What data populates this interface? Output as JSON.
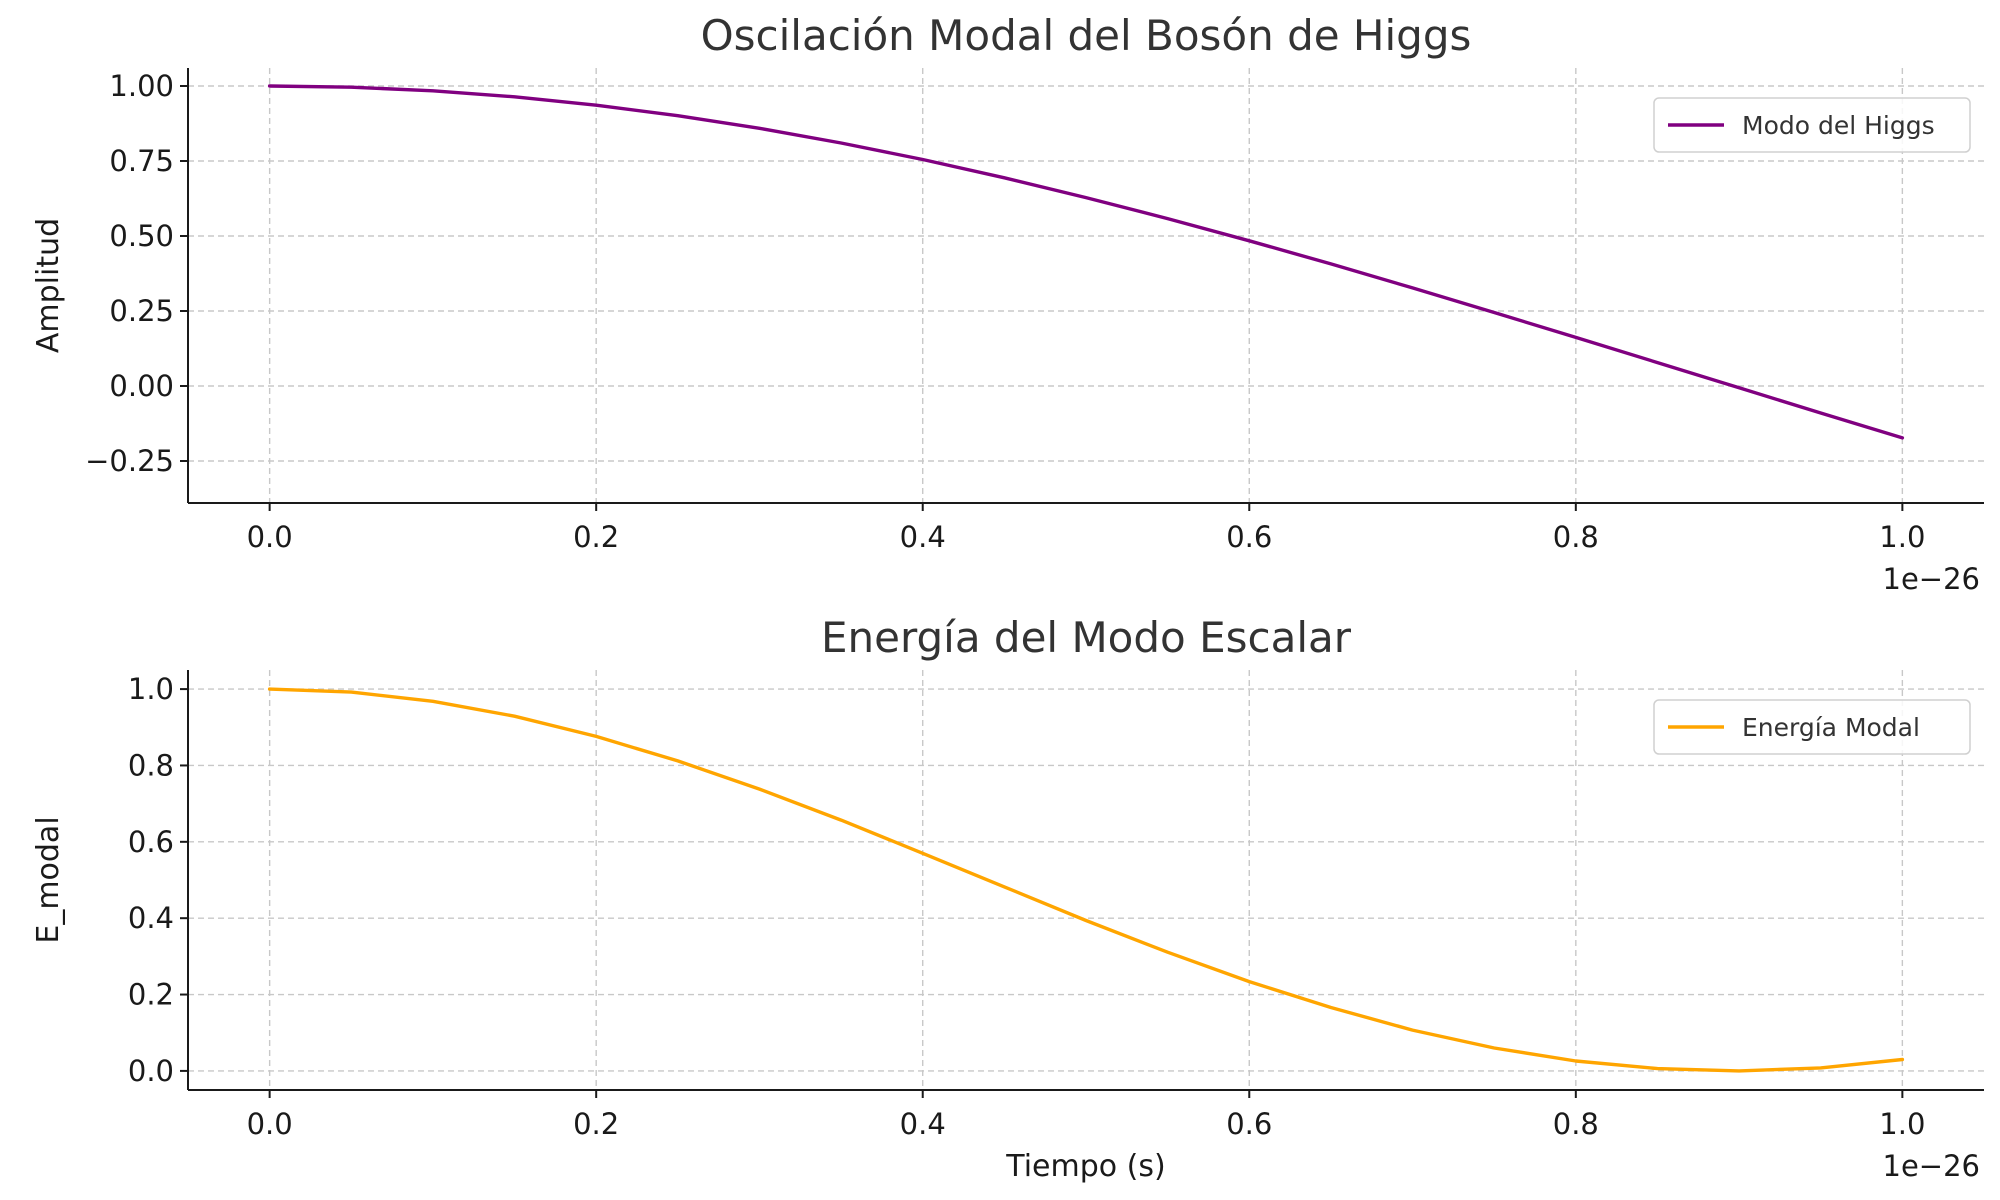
{
  "chart_data": [
    {
      "type": "line",
      "title": "Oscilación Modal del Bosón de Higgs",
      "xlabel": "",
      "ylabel": "Amplitud",
      "x_offset_label": "1e−26",
      "xlim": [
        -0.05,
        1.05
      ],
      "ylim": [
        -0.39,
        1.06
      ],
      "x_ticks": [
        0.0,
        0.2,
        0.4,
        0.6,
        0.8,
        1.0
      ],
      "x_tick_labels": [
        "0.0",
        "0.2",
        "0.4",
        "0.6",
        "0.8",
        "1.0"
      ],
      "y_ticks": [
        -0.25,
        0.0,
        0.25,
        0.5,
        0.75,
        1.0
      ],
      "y_tick_labels": [
        "−0.25",
        "0.00",
        "0.25",
        "0.50",
        "0.75",
        "1.00"
      ],
      "grid": true,
      "legend_position": "top-right",
      "series": [
        {
          "name": "Modo del Higgs",
          "color": "#800080",
          "x": [
            0.0,
            0.05,
            0.1,
            0.15,
            0.2,
            0.25,
            0.3,
            0.35,
            0.4,
            0.45,
            0.5,
            0.55,
            0.6,
            0.65,
            0.7,
            0.75,
            0.8,
            0.85,
            0.9,
            0.95,
            1.0
          ],
          "y": [
            1.0,
            0.996,
            0.984,
            0.964,
            0.936,
            0.901,
            0.859,
            0.81,
            0.755,
            0.694,
            0.628,
            0.558,
            0.484,
            0.407,
            0.327,
            0.245,
            0.162,
            0.078,
            -0.006,
            -0.09,
            -0.173
          ]
        }
      ]
    },
    {
      "type": "line",
      "title": "Energía del Modo Escalar",
      "xlabel": "Tiempo (s)",
      "ylabel": "E_modal",
      "x_offset_label": "1e−26",
      "xlim": [
        -0.05,
        1.05
      ],
      "ylim": [
        -0.05,
        1.05
      ],
      "x_ticks": [
        0.0,
        0.2,
        0.4,
        0.6,
        0.8,
        1.0
      ],
      "x_tick_labels": [
        "0.0",
        "0.2",
        "0.4",
        "0.6",
        "0.8",
        "1.0"
      ],
      "y_ticks": [
        0.0,
        0.2,
        0.4,
        0.6,
        0.8,
        1.0
      ],
      "y_tick_labels": [
        "0.0",
        "0.2",
        "0.4",
        "0.6",
        "0.8",
        "1.0"
      ],
      "grid": true,
      "legend_position": "top-right",
      "series": [
        {
          "name": "Energía Modal",
          "color": "#FFA500",
          "x": [
            0.0,
            0.05,
            0.1,
            0.15,
            0.2,
            0.25,
            0.3,
            0.35,
            0.4,
            0.45,
            0.5,
            0.55,
            0.6,
            0.65,
            0.7,
            0.75,
            0.8,
            0.85,
            0.9,
            0.95,
            1.0
          ],
          "y": [
            1.0,
            0.992,
            0.968,
            0.929,
            0.876,
            0.812,
            0.738,
            0.657,
            0.57,
            0.482,
            0.394,
            0.311,
            0.234,
            0.166,
            0.107,
            0.06,
            0.026,
            0.006,
            0.0,
            0.008,
            0.03
          ]
        }
      ]
    }
  ]
}
